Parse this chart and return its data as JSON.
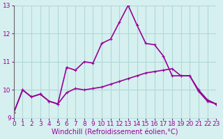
{
  "bg_color": "#d6f0f0",
  "grid_color": "#b0d8d8",
  "line_color": "#990099",
  "xlabel": "Windchill (Refroidissement éolien,°C)",
  "xlim": [
    0,
    23
  ],
  "ylim": [
    9,
    13
  ],
  "yticks": [
    9,
    10,
    11,
    12,
    13
  ],
  "xticks": [
    0,
    1,
    2,
    3,
    4,
    5,
    6,
    7,
    8,
    9,
    10,
    11,
    12,
    13,
    14,
    15,
    16,
    17,
    18,
    19,
    20,
    21,
    22,
    23
  ],
  "series1_x": [
    0,
    1,
    2,
    3,
    4,
    5,
    6,
    7,
    8,
    9,
    10,
    11,
    12,
    13,
    14,
    15,
    16,
    17,
    18,
    19,
    20,
    21,
    22,
    23
  ],
  "series1_y": [
    9.2,
    10.0,
    9.75,
    9.85,
    9.6,
    9.5,
    9.9,
    10.05,
    10.0,
    10.05,
    10.1,
    10.2,
    10.3,
    10.4,
    10.5,
    10.6,
    10.65,
    10.7,
    10.75,
    10.5,
    10.5,
    10.0,
    9.65,
    9.5
  ],
  "series2_x": [
    0,
    1,
    2,
    3,
    4,
    5,
    6,
    7,
    8,
    9,
    10,
    11,
    12,
    13,
    14,
    15,
    16,
    17,
    18,
    19,
    20,
    21,
    22,
    23
  ],
  "series2_y": [
    9.2,
    10.0,
    9.75,
    9.85,
    9.6,
    9.5,
    10.8,
    10.7,
    11.0,
    10.95,
    11.65,
    11.8,
    12.4,
    13.0,
    12.3,
    11.65,
    11.6,
    11.2,
    10.5,
    10.5,
    10.5,
    9.95,
    9.6,
    9.5
  ],
  "tick_label_color": "#990099",
  "tick_label_fontsize": 6.5,
  "xlabel_fontsize": 7,
  "linewidth": 1.2,
  "markersize": 3
}
